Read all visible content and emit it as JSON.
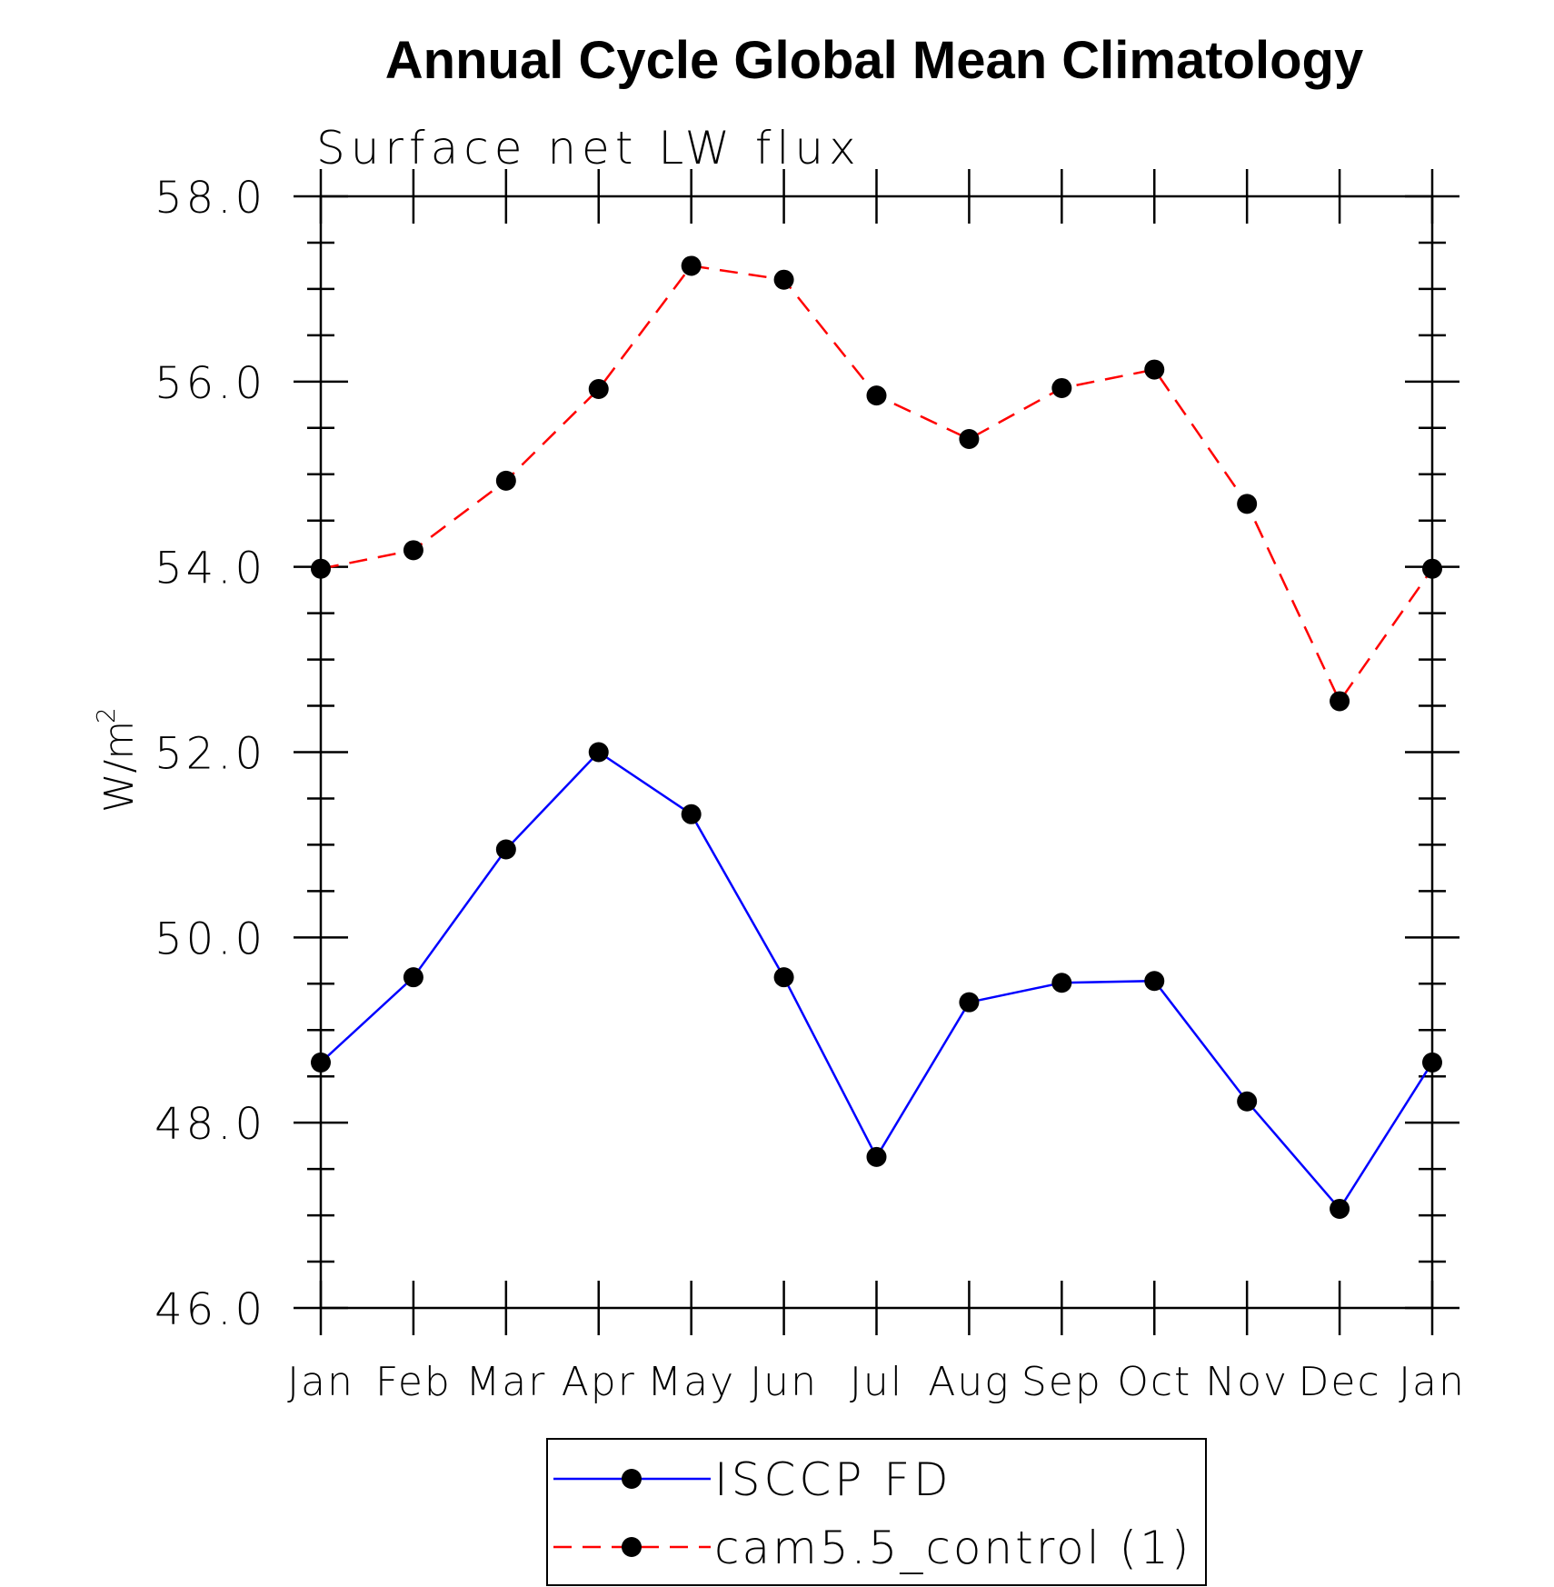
{
  "chart_data": {
    "type": "line",
    "title": "Annual Cycle Global Mean Climatology",
    "subtitle": "Surface net LW flux",
    "ylabel_main": "W/m",
    "ylabel_sup": "2",
    "categories": [
      "Jan",
      "Feb",
      "Mar",
      "Apr",
      "May",
      "Jun",
      "Jul",
      "Aug",
      "Sep",
      "Oct",
      "Nov",
      "Dec",
      "Jan"
    ],
    "ylim": [
      46.0,
      58.0
    ],
    "y_ticks": [
      "46.0",
      "48.0",
      "50.0",
      "52.0",
      "54.0",
      "56.0",
      "58.0"
    ],
    "y_tick_values": [
      46,
      48,
      50,
      52,
      54,
      56,
      58
    ],
    "series": [
      {
        "name": "ISCCP FD",
        "color": "#0000ff",
        "dash": "solid",
        "values": [
          48.65,
          49.57,
          50.95,
          52.0,
          51.33,
          49.57,
          47.63,
          49.3,
          49.51,
          49.53,
          48.23,
          47.07,
          48.65
        ]
      },
      {
        "name": "cam5.5_control (1)",
        "color": "#ff0000",
        "dash": "dashed",
        "values": [
          53.98,
          54.18,
          54.93,
          55.92,
          57.25,
          57.1,
          55.85,
          55.38,
          55.93,
          56.13,
          54.68,
          52.55,
          53.98
        ]
      }
    ],
    "marker": "filled-circle",
    "marker_color": "#000000",
    "grid": false,
    "legend_position": "bottom-center"
  }
}
